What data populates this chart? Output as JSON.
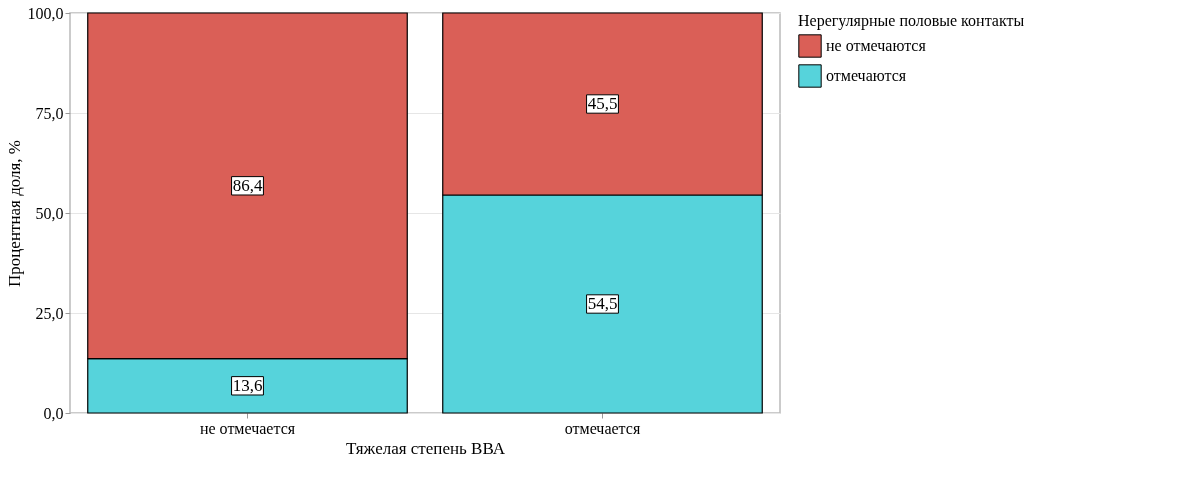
{
  "chart_data": {
    "type": "bar",
    "stacked": true,
    "xlabel": "Тяжелая степень ВВА",
    "ylabel": "Процентная доля, %",
    "legend_title": "Нерегулярные половые контакты",
    "categories": [
      "не отмечается",
      "отмечается"
    ],
    "series": [
      {
        "name": "отмечаются",
        "color": "#56d3db",
        "values": [
          13.6,
          54.5
        ],
        "value_labels": [
          "13,6",
          "54,5"
        ]
      },
      {
        "name": "не отмечаются",
        "color": "#da5f57",
        "values": [
          86.4,
          45.5
        ],
        "value_labels": [
          "86,4",
          "45,5"
        ]
      }
    ],
    "ylim": [
      0,
      100
    ],
    "yticks": [
      {
        "value": 0,
        "label": "0,0"
      },
      {
        "value": 25,
        "label": "25,0"
      },
      {
        "value": 50,
        "label": "50,0"
      },
      {
        "value": 75,
        "label": "75,0"
      },
      {
        "value": 100,
        "label": "100,0"
      }
    ],
    "grid": true,
    "legend": "right"
  }
}
